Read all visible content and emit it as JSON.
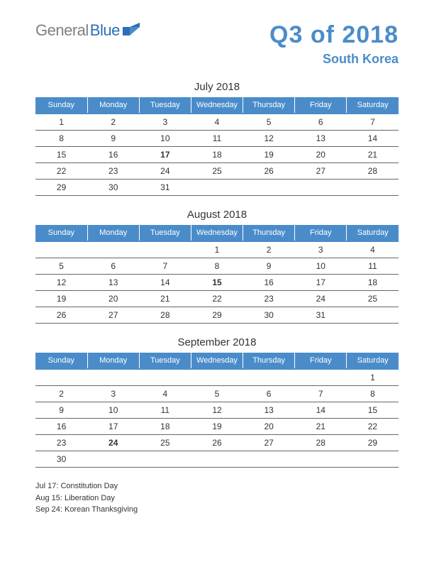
{
  "logo": {
    "text1": "General",
    "text2": "Blue"
  },
  "header": {
    "title": "Q3 of 2018",
    "subtitle": "South Korea"
  },
  "colors": {
    "accent": "#4a8cc9",
    "logo_gray": "#808080",
    "logo_blue": "#2a6fbb",
    "holiday": "#d93025",
    "row_border": "#666666",
    "header_text": "#ffffff",
    "body_text": "#333333",
    "background": "#ffffff"
  },
  "day_headers": [
    "Sunday",
    "Monday",
    "Tuesday",
    "Wednesday",
    "Thursday",
    "Friday",
    "Saturday"
  ],
  "months": [
    {
      "title": "July 2018",
      "rows": [
        [
          {
            "d": "1"
          },
          {
            "d": "2"
          },
          {
            "d": "3"
          },
          {
            "d": "4"
          },
          {
            "d": "5"
          },
          {
            "d": "6"
          },
          {
            "d": "7"
          }
        ],
        [
          {
            "d": "8"
          },
          {
            "d": "9"
          },
          {
            "d": "10"
          },
          {
            "d": "11"
          },
          {
            "d": "12"
          },
          {
            "d": "13"
          },
          {
            "d": "14"
          }
        ],
        [
          {
            "d": "15"
          },
          {
            "d": "16"
          },
          {
            "d": "17",
            "h": true
          },
          {
            "d": "18"
          },
          {
            "d": "19"
          },
          {
            "d": "20"
          },
          {
            "d": "21"
          }
        ],
        [
          {
            "d": "22"
          },
          {
            "d": "23"
          },
          {
            "d": "24"
          },
          {
            "d": "25"
          },
          {
            "d": "26"
          },
          {
            "d": "27"
          },
          {
            "d": "28"
          }
        ],
        [
          {
            "d": "29"
          },
          {
            "d": "30"
          },
          {
            "d": "31"
          },
          {
            "d": ""
          },
          {
            "d": ""
          },
          {
            "d": ""
          },
          {
            "d": ""
          }
        ]
      ]
    },
    {
      "title": "August 2018",
      "rows": [
        [
          {
            "d": ""
          },
          {
            "d": ""
          },
          {
            "d": ""
          },
          {
            "d": "1"
          },
          {
            "d": "2"
          },
          {
            "d": "3"
          },
          {
            "d": "4"
          }
        ],
        [
          {
            "d": "5"
          },
          {
            "d": "6"
          },
          {
            "d": "7"
          },
          {
            "d": "8"
          },
          {
            "d": "9"
          },
          {
            "d": "10"
          },
          {
            "d": "11"
          }
        ],
        [
          {
            "d": "12"
          },
          {
            "d": "13"
          },
          {
            "d": "14"
          },
          {
            "d": "15",
            "h": true
          },
          {
            "d": "16"
          },
          {
            "d": "17"
          },
          {
            "d": "18"
          }
        ],
        [
          {
            "d": "19"
          },
          {
            "d": "20"
          },
          {
            "d": "21"
          },
          {
            "d": "22"
          },
          {
            "d": "23"
          },
          {
            "d": "24"
          },
          {
            "d": "25"
          }
        ],
        [
          {
            "d": "26"
          },
          {
            "d": "27"
          },
          {
            "d": "28"
          },
          {
            "d": "29"
          },
          {
            "d": "30"
          },
          {
            "d": "31"
          },
          {
            "d": ""
          }
        ]
      ]
    },
    {
      "title": "September 2018",
      "rows": [
        [
          {
            "d": ""
          },
          {
            "d": ""
          },
          {
            "d": ""
          },
          {
            "d": ""
          },
          {
            "d": ""
          },
          {
            "d": ""
          },
          {
            "d": "1"
          }
        ],
        [
          {
            "d": "2"
          },
          {
            "d": "3"
          },
          {
            "d": "4"
          },
          {
            "d": "5"
          },
          {
            "d": "6"
          },
          {
            "d": "7"
          },
          {
            "d": "8"
          }
        ],
        [
          {
            "d": "9"
          },
          {
            "d": "10"
          },
          {
            "d": "11"
          },
          {
            "d": "12"
          },
          {
            "d": "13"
          },
          {
            "d": "14"
          },
          {
            "d": "15"
          }
        ],
        [
          {
            "d": "16"
          },
          {
            "d": "17"
          },
          {
            "d": "18"
          },
          {
            "d": "19"
          },
          {
            "d": "20"
          },
          {
            "d": "21"
          },
          {
            "d": "22"
          }
        ],
        [
          {
            "d": "23"
          },
          {
            "d": "24",
            "h": true
          },
          {
            "d": "25"
          },
          {
            "d": "26"
          },
          {
            "d": "27"
          },
          {
            "d": "28"
          },
          {
            "d": "29"
          }
        ],
        [
          {
            "d": "30"
          },
          {
            "d": ""
          },
          {
            "d": ""
          },
          {
            "d": ""
          },
          {
            "d": ""
          },
          {
            "d": ""
          },
          {
            "d": ""
          }
        ]
      ]
    }
  ],
  "holidays": [
    "Jul 17: Constitution Day",
    "Aug 15: Liberation Day",
    "Sep 24: Korean Thanksgiving"
  ]
}
